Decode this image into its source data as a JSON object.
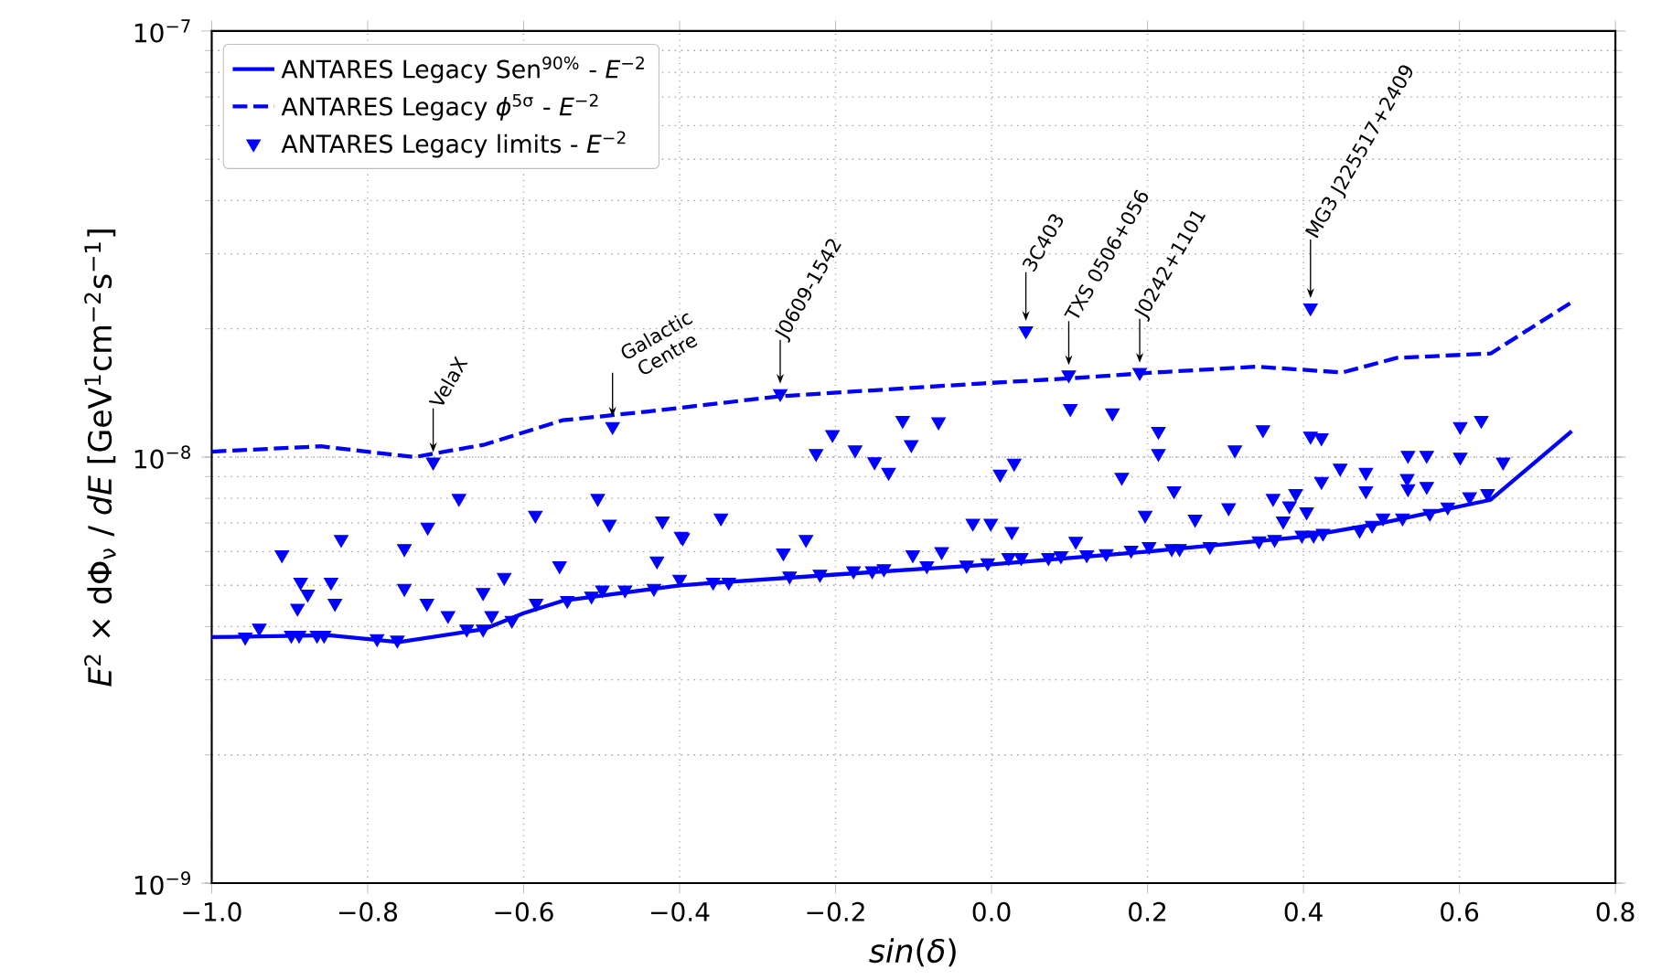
{
  "chart_data": {
    "type": "scatter",
    "xlabel": "*sin*(*δ*)",
    "ylabel": "*E*$^{2}$ × dΦ$_{ν}$ / *dE* [GeV$^{1}$cm$^{−2}$s$^{−1}$]",
    "xlim": [
      -1.0,
      0.8
    ],
    "ylim": [
      1e-09,
      1e-07
    ],
    "log": "y",
    "grid": true,
    "legend": "top left",
    "xticks": [
      {
        "value": -1.0,
        "label": "−1.0"
      },
      {
        "value": -0.8,
        "label": "−0.8"
      },
      {
        "value": -0.6,
        "label": "−0.6"
      },
      {
        "value": -0.4,
        "label": "−0.4"
      },
      {
        "value": -0.2,
        "label": "−0.2"
      },
      {
        "value": 0.0,
        "label": "0.0"
      },
      {
        "value": 0.2,
        "label": "0.2"
      },
      {
        "value": 0.4,
        "label": "0.4"
      },
      {
        "value": 0.6,
        "label": "0.6"
      },
      {
        "value": 0.8,
        "label": "0.8"
      }
    ],
    "yticks": [
      {
        "value": 1e-09,
        "label": "10$^{−9}$"
      },
      {
        "value": 1e-08,
        "label": "10$^{−8}$"
      },
      {
        "value": 1e-07,
        "label": "10$^{−7}$"
      }
    ],
    "series": [
      {
        "name": "ANTARES Legacy Sen$^{90%}$ - *E*$^{−2}$",
        "type": "line",
        "line_style": "solid",
        "color": "#0000ff",
        "x": [
          -1.0,
          -0.85,
          -0.76,
          -0.65,
          -0.6,
          -0.55,
          -0.4,
          -0.2,
          0.0,
          0.2,
          0.4,
          0.5,
          0.64,
          0.744
        ],
        "values": [
          3.78e-09,
          3.82e-09,
          3.68e-09,
          3.95e-09,
          4.3e-09,
          4.6e-09,
          5e-09,
          5.3e-09,
          5.6e-09,
          6e-09,
          6.5e-09,
          7e-09,
          7.94e-09,
          1.15e-08
        ]
      },
      {
        "name": "ANTARES Legacy *ϕ*$^{5σ}$ - *E*$^{−2}$",
        "type": "line",
        "line_style": "dashed",
        "color": "#0000ff",
        "x": [
          -1.0,
          -0.86,
          -0.74,
          -0.65,
          -0.55,
          -0.44,
          -0.27,
          -0.01,
          0.1,
          0.21,
          0.34,
          0.45,
          0.52,
          0.64,
          0.744
        ],
        "values": [
          1.03e-08,
          1.06e-08,
          1e-08,
          1.07e-08,
          1.22e-08,
          1.28e-08,
          1.39e-08,
          1.49e-08,
          1.53e-08,
          1.58e-08,
          1.63e-08,
          1.58e-08,
          1.71e-08,
          1.75e-08,
          2.31e-08
        ]
      },
      {
        "name": "ANTARES Legacy limits - *E*$^{−2}$",
        "marker": "triangle",
        "color": "#0000ff",
        "x": [
          -0.957,
          -0.939,
          -0.898,
          -0.888,
          -0.865,
          -0.856,
          -0.788,
          -0.762,
          -0.673,
          -0.652,
          -0.615,
          -0.584,
          -0.544,
          -0.513,
          -0.499,
          -0.47,
          -0.433,
          -0.4,
          -0.716,
          -0.486,
          -0.91,
          -0.886,
          -0.877,
          -0.89,
          -0.847,
          -0.842,
          -0.834,
          -0.753,
          -0.753,
          -0.724,
          -0.697,
          -0.652,
          -0.641,
          -0.625,
          -0.554,
          -0.723,
          -0.683,
          -0.585,
          -0.505,
          -0.49,
          -0.422,
          -0.398,
          -0.429,
          -0.271,
          0.044,
          0.099,
          0.19,
          -0.225,
          -0.204,
          -0.175,
          -0.15,
          -0.132,
          -0.114,
          -0.103,
          -0.068,
          0.011,
          0.029,
          0.101,
          0.155,
          0.167,
          -0.396,
          -0.347,
          -0.267,
          -0.238,
          -0.101,
          -0.064,
          -0.024,
          -0.001,
          0.026,
          0.108,
          0.197,
          -0.357,
          -0.337,
          -0.259,
          -0.22,
          -0.177,
          -0.153,
          -0.138,
          -0.083,
          -0.032,
          -0.005,
          0.022,
          0.038,
          0.073,
          0.089,
          0.122,
          0.147,
          0.179,
          0.202,
          0.409,
          0.214,
          0.214,
          0.234,
          0.261,
          0.304,
          0.312,
          0.348,
          0.361,
          0.374,
          0.382,
          0.39,
          0.404,
          0.409,
          0.423,
          0.423,
          0.447,
          0.48,
          0.48,
          0.534,
          0.558,
          0.533,
          0.534,
          0.558,
          0.601,
          0.628,
          0.601,
          0.656,
          0.231,
          0.241,
          0.28,
          0.343,
          0.363,
          0.398,
          0.413,
          0.425,
          0.472,
          0.488,
          0.502,
          0.527,
          0.562,
          0.585,
          0.613,
          0.636
        ],
        "values": [
          3.78e-09,
          3.97e-09,
          3.82e-09,
          3.82e-09,
          3.82e-09,
          3.82e-09,
          3.75e-09,
          3.72e-09,
          3.95e-09,
          3.95e-09,
          4.14e-09,
          4.54e-09,
          4.61e-09,
          4.72e-09,
          4.88e-09,
          4.88e-09,
          4.92e-09,
          5.17e-09,
          9.74e-09,
          1.18e-08,
          5.9e-09,
          5.09e-09,
          4.77e-09,
          4.42e-09,
          5.09e-09,
          4.54e-09,
          6.41e-09,
          6.1e-09,
          4.92e-09,
          4.54e-09,
          4.25e-09,
          4.81e-09,
          4.25e-09,
          5.22e-09,
          5.56e-09,
          6.85e-09,
          8e-09,
          7.31e-09,
          8e-09,
          6.96e-09,
          7.08e-09,
          6.52e-09,
          5.71e-09,
          1.41e-08,
          1.98e-08,
          1.56e-08,
          1.58e-08,
          1.02e-08,
          1.13e-08,
          1.04e-08,
          9.75e-09,
          9.21e-09,
          1.22e-08,
          1.07e-08,
          1.21e-08,
          9.12e-09,
          9.68e-09,
          1.3e-08,
          1.27e-08,
          8.97e-09,
          6.47e-09,
          7.2e-09,
          5.96e-09,
          6.41e-09,
          5.9e-09,
          6e-09,
          7e-09,
          7e-09,
          6.69e-09,
          6.35e-09,
          7.31e-09,
          5.09e-09,
          5.09e-09,
          5.26e-09,
          5.31e-09,
          5.41e-09,
          5.41e-09,
          5.47e-09,
          5.56e-09,
          5.58e-09,
          5.65e-09,
          5.81e-09,
          5.81e-09,
          5.81e-09,
          5.87e-09,
          5.9e-09,
          5.94e-09,
          6.05e-09,
          6.17e-09,
          2.24e-08,
          1.15e-08,
          1.02e-08,
          8.34e-09,
          7.15e-09,
          7.61e-09,
          1.04e-08,
          1.16e-08,
          8e-09,
          7.08e-09,
          7.69e-09,
          8.21e-09,
          7.44e-09,
          1.12e-08,
          1.11e-08,
          8.77e-09,
          9.42e-09,
          9.21e-09,
          8.34e-09,
          1.01e-08,
          1.01e-08,
          8.91e-09,
          8.43e-09,
          8.54e-09,
          1.18e-08,
          1.22e-08,
          1e-08,
          9.74e-09,
          6.1e-09,
          6.1e-09,
          6.17e-09,
          6.36e-09,
          6.41e-09,
          6.56e-09,
          6.56e-09,
          6.63e-09,
          6.74e-09,
          6.92e-09,
          7.2e-09,
          7.2e-09,
          7.38e-09,
          7.64e-09,
          8.07e-09,
          8.21e-09
        ]
      }
    ],
    "annotations": [
      {
        "text": "VelaX",
        "x": -0.716,
        "y": 9.74e-09
      },
      {
        "text": "Galactic Centre",
        "x": -0.486,
        "y": 1.18e-08
      },
      {
        "text": "J0609-1542",
        "x": -0.271,
        "y": 1.41e-08
      },
      {
        "text": "3C403",
        "x": 0.044,
        "y": 1.98e-08
      },
      {
        "text": "TXS 0506+056",
        "x": 0.099,
        "y": 1.56e-08
      },
      {
        "text": "J0242+1101",
        "x": 0.19,
        "y": 1.58e-08
      },
      {
        "text": "MG3 J225517+2409",
        "x": 0.409,
        "y": 2.24e-08
      }
    ]
  }
}
